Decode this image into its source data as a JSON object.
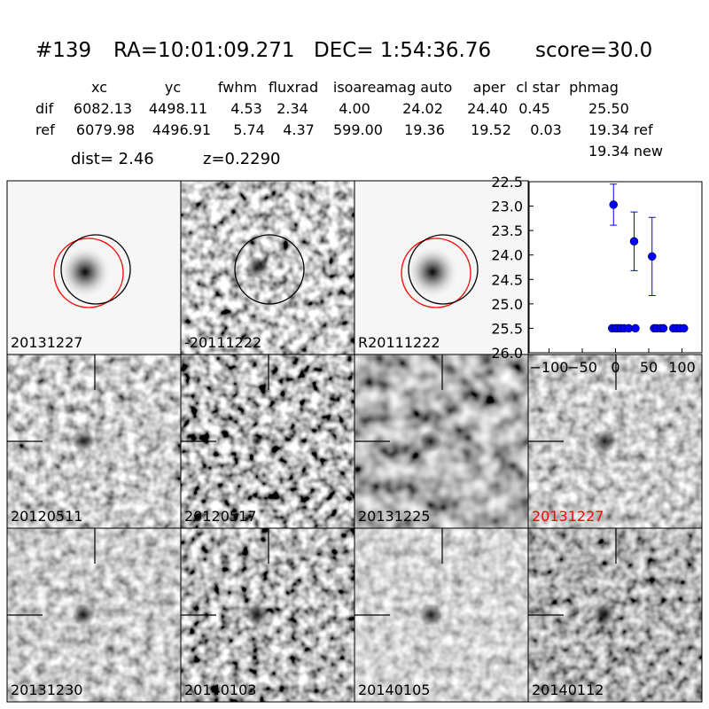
{
  "header": {
    "id": "#139",
    "ra": "RA=10:01:09.271",
    "dec": "DEC= 1:54:36.76",
    "score": "score=30.0"
  },
  "table": {
    "columns": [
      "xc",
      "yc",
      "fwhm",
      "fluxrad",
      "isoarea",
      "mag auto",
      "aper",
      "cl star",
      "phmag"
    ],
    "rows": [
      {
        "label": "dif",
        "cells": [
          "6082.13",
          "4498.11",
          "4.53",
          "2.34",
          "4.00",
          "24.02",
          "24.40",
          "0.45",
          "25.50"
        ]
      },
      {
        "label": "ref",
        "cells": [
          "6079.98",
          "4496.91",
          "5.74",
          "4.37",
          "599.00",
          "19.36",
          "19.52",
          "0.03",
          "19.34 ref"
        ]
      }
    ],
    "extra": "19.34 new"
  },
  "dist": "dist=  2.46",
  "z": "z=0.2290",
  "stamps": [
    {
      "label": "20131227",
      "color": "#000000"
    },
    {
      "label": "-20111222",
      "color": "#000000"
    },
    {
      "label": "R20111222",
      "color": "#000000"
    },
    {
      "label": "20120511",
      "color": "#000000"
    },
    {
      "label": "20120517",
      "color": "#000000"
    },
    {
      "label": "20131225",
      "color": "#000000"
    },
    {
      "label": "20131227",
      "color": "#ff0000"
    },
    {
      "label": "20131230",
      "color": "#000000"
    },
    {
      "label": "20140103",
      "color": "#000000"
    },
    {
      "label": "20140105",
      "color": "#000000"
    },
    {
      "label": "20140112",
      "color": "#000000"
    }
  ],
  "chart_data": {
    "type": "errorbar",
    "color": "#0000ff",
    "x": [
      -3,
      28,
      55,
      -5,
      0,
      4,
      8,
      13,
      20,
      30,
      58,
      62,
      68,
      72,
      87,
      92,
      97,
      103
    ],
    "values": [
      22.97,
      23.72,
      24.03,
      25.5,
      25.5,
      25.5,
      25.5,
      25.5,
      25.5,
      25.5,
      25.5,
      25.5,
      25.5,
      25.5,
      25.5,
      25.5,
      25.5,
      25.5
    ],
    "errors": [
      0.42,
      0.6,
      0.8,
      0,
      0,
      0,
      0,
      0,
      0,
      0,
      0,
      0,
      0,
      0,
      0,
      0,
      0,
      0
    ],
    "xlim": [
      -130,
      130
    ],
    "xticks": [
      {
        "value": -100,
        "label": "−100"
      },
      {
        "value": -50,
        "label": "−50"
      },
      0,
      50,
      100
    ],
    "ylim": [
      22.5,
      26.0
    ],
    "invert_y": true,
    "yticks": [
      22.5,
      {
        "value": 23.0,
        "label": "23.0"
      },
      23.5,
      {
        "value": 24.0,
        "label": "24.0"
      },
      24.5,
      {
        "value": 25.0,
        "label": "25.0"
      },
      25.5,
      {
        "value": 26.0,
        "label": "26.0"
      }
    ]
  }
}
